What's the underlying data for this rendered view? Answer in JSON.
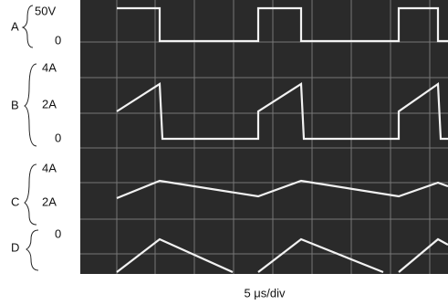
{
  "traces": [
    {
      "name": "A",
      "labels": [
        "50V",
        "0"
      ]
    },
    {
      "name": "B",
      "labels": [
        "4A",
        "2A",
        "0"
      ]
    },
    {
      "name": "C",
      "labels": [
        "4A",
        "2A"
      ]
    },
    {
      "name": "D",
      "labels": [
        "0"
      ]
    }
  ],
  "footer": "5 μs/div"
}
